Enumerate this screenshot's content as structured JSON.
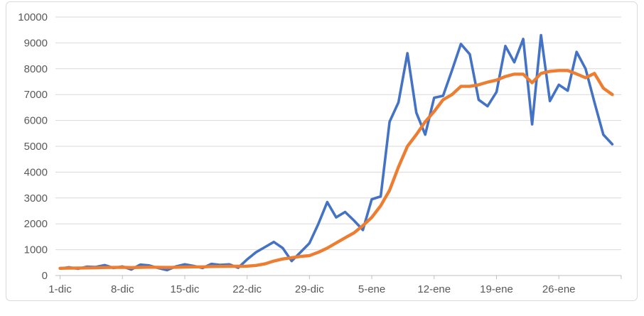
{
  "chart_data": {
    "type": "line",
    "title": "",
    "xlabel": "",
    "ylabel": "",
    "ylim": [
      0,
      10000
    ],
    "y_tick_step": 1000,
    "grid": true,
    "legend": "none",
    "y_tick_labels": [
      "0",
      "1000",
      "2000",
      "3000",
      "4000",
      "5000",
      "6000",
      "7000",
      "8000",
      "9000",
      "10000"
    ],
    "x_tick_labels": [
      "1-dic",
      "8-dic",
      "15-dic",
      "22-dic",
      "29-dic",
      "5-ene",
      "12-ene",
      "19-ene",
      "26-ene"
    ],
    "categories": [
      "1-dic",
      "2-dic",
      "3-dic",
      "4-dic",
      "5-dic",
      "6-dic",
      "7-dic",
      "8-dic",
      "9-dic",
      "10-dic",
      "11-dic",
      "12-dic",
      "13-dic",
      "14-dic",
      "15-dic",
      "16-dic",
      "17-dic",
      "18-dic",
      "19-dic",
      "20-dic",
      "21-dic",
      "22-dic",
      "23-dic",
      "24-dic",
      "25-dic",
      "26-dic",
      "27-dic",
      "28-dic",
      "29-dic",
      "30-dic",
      "31-dic",
      "1-ene",
      "2-ene",
      "3-ene",
      "4-ene",
      "5-ene",
      "6-ene",
      "7-ene",
      "8-ene",
      "9-ene",
      "10-ene",
      "11-ene",
      "12-ene",
      "13-ene",
      "14-ene",
      "15-ene",
      "16-ene",
      "17-ene",
      "18-ene",
      "19-ene",
      "20-ene",
      "21-ene",
      "22-ene",
      "23-ene",
      "24-ene",
      "25-ene",
      "26-ene",
      "27-ene",
      "28-ene",
      "29-ene",
      "30-ene",
      "31-ene",
      "1-feb"
    ],
    "series": [
      {
        "name": "daily-values-blue",
        "color": "#4472C4",
        "width": 3.6,
        "values": [
          270,
          320,
          260,
          340,
          330,
          400,
          290,
          350,
          230,
          420,
          390,
          290,
          210,
          350,
          430,
          370,
          290,
          450,
          410,
          430,
          300,
          620,
          900,
          1100,
          1300,
          1060,
          560,
          900,
          1250,
          2000,
          2840,
          2250,
          2460,
          2130,
          1760,
          2950,
          3060,
          5950,
          6700,
          8600,
          6300,
          5450,
          6880,
          6950,
          7930,
          8960,
          8560,
          6800,
          6550,
          7100,
          8880,
          8250,
          9150,
          5850,
          9300,
          6750,
          7380,
          7150,
          8650,
          8000,
          6700,
          5450,
          5080
        ]
      },
      {
        "name": "smoothed-average-orange",
        "color": "#ED7D31",
        "width": 4.4,
        "values": [
          280,
          285,
          290,
          295,
          300,
          310,
          312,
          318,
          308,
          316,
          325,
          320,
          312,
          320,
          330,
          335,
          335,
          348,
          352,
          356,
          358,
          362,
          390,
          450,
          560,
          640,
          690,
          740,
          770,
          900,
          1060,
          1260,
          1460,
          1650,
          1930,
          2250,
          2700,
          3300,
          4200,
          5000,
          5450,
          5950,
          6350,
          6800,
          7000,
          7320,
          7320,
          7380,
          7480,
          7560,
          7700,
          7790,
          7790,
          7460,
          7820,
          7900,
          7930,
          7930,
          7800,
          7650,
          7820,
          7250,
          7000
        ]
      }
    ],
    "style": {
      "background": "#FFFFFF",
      "border": "#D9D9D9",
      "gridline": "#D9D9D9",
      "axis_line": "#BFBFBF",
      "tick": "#BFBFBF",
      "label": "#595959"
    }
  }
}
